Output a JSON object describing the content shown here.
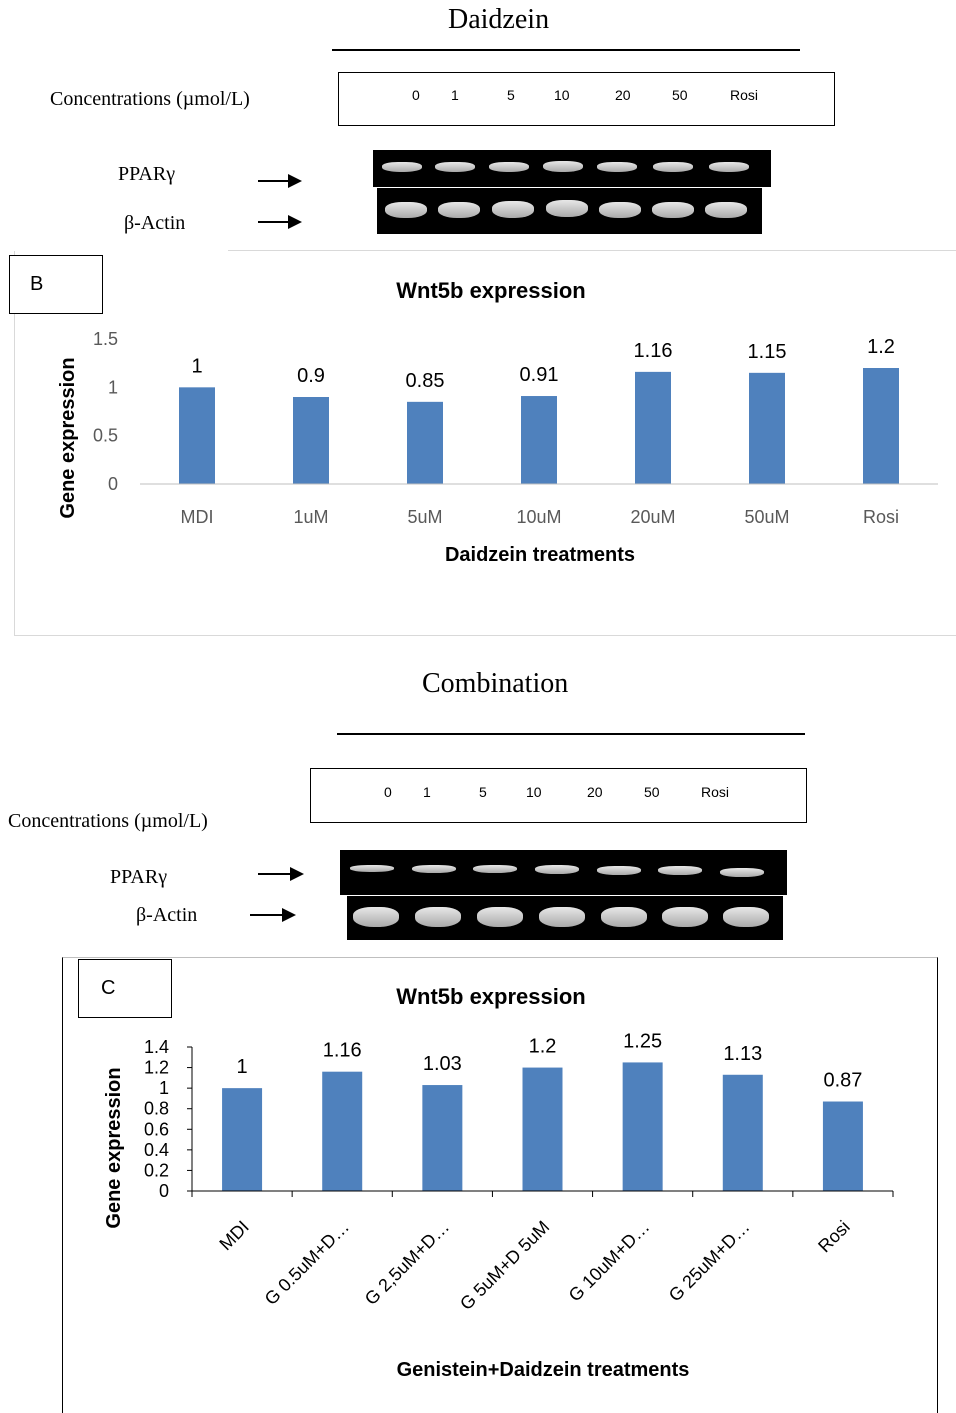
{
  "section1": {
    "title": "Daidzein",
    "concentration_label": "Concentrations (µmol/L)",
    "concentrations": [
      "0",
      "1",
      "5",
      "10",
      "20",
      "50",
      "Rosi"
    ],
    "gel_labels": [
      "PPARγ",
      "β-Actin"
    ]
  },
  "section2": {
    "title": "Combination",
    "concentration_label": "Concentrations (µmol/L)",
    "concentrations": [
      "0",
      "1",
      "5",
      "10",
      "20",
      "50",
      "Rosi"
    ],
    "gel_labels": [
      "PPARγ",
      "β-Actin"
    ]
  },
  "panel_letters": [
    "B",
    "C"
  ],
  "chart_data": [
    {
      "type": "bar",
      "title": "Wnt5b expression",
      "xlabel": "Daidzein treatments",
      "ylabel": "Gene expression",
      "categories": [
        "MDI",
        "1uM",
        "5uM",
        "10uM",
        "20uM",
        "50uM",
        "Rosi"
      ],
      "values": [
        1,
        0.9,
        0.85,
        0.91,
        1.16,
        1.15,
        1.2
      ],
      "data_labels": [
        "1",
        "0.9",
        "0.85",
        "0.91",
        "1.16",
        "1.15",
        "1.2"
      ],
      "ylim": [
        0,
        1.5
      ],
      "yticks": [
        "0",
        "0.5",
        "1",
        "1.5"
      ],
      "bar_color": "#4f81bd",
      "grid": false,
      "legend": "none"
    },
    {
      "type": "bar",
      "title": "Wnt5b expression",
      "xlabel": "Genistein+Daidzein treatments",
      "ylabel": "Gene expression",
      "categories": [
        "MDI",
        "G 0.5uM+D…",
        "G 2,5uM+D…",
        "G 5uM+D 5uM",
        "G 10uM+D…",
        "G 25uM+D…",
        "Rosi"
      ],
      "values": [
        1,
        1.16,
        1.03,
        1.2,
        1.25,
        1.13,
        0.87
      ],
      "data_labels": [
        "1",
        "1.16",
        "1.03",
        "1.2",
        "1.25",
        "1.13",
        "0.87"
      ],
      "ylim": [
        0,
        1.4
      ],
      "yticks": [
        "0",
        "0.2",
        "0.4",
        "0.6",
        "0.8",
        "1",
        "1.2",
        "1.4"
      ],
      "bar_color": "#4f81bd",
      "grid": false,
      "legend": "none"
    }
  ]
}
